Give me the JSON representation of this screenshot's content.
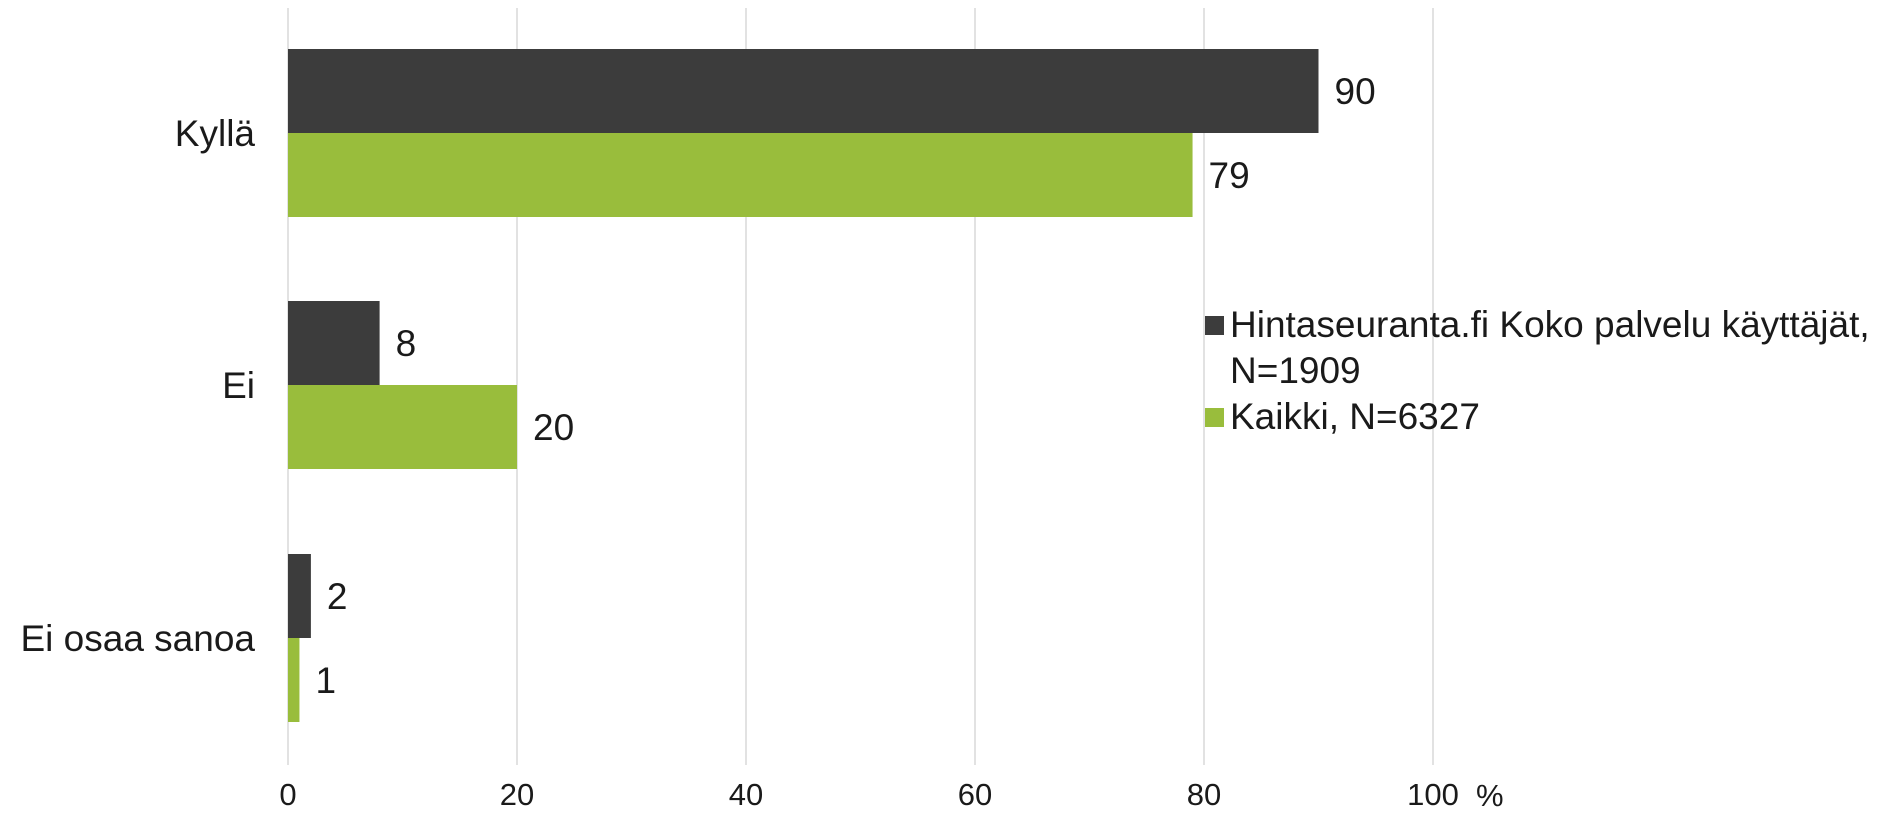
{
  "chart_data": {
    "type": "bar",
    "orientation": "horizontal",
    "categories": [
      "Kyllä",
      "Ei",
      "Ei osaa sanoa"
    ],
    "series": [
      {
        "name": "Hintaseuranta.fi Koko palvelu käyttäjät, N=1909",
        "color": "#3c3c3c",
        "values": [
          90,
          8,
          2
        ]
      },
      {
        "name": "Kaikki, N=6327",
        "color": "#99bd3c",
        "values": [
          79,
          20,
          1
        ]
      }
    ],
    "data_labels": [
      [
        "90",
        "8",
        "2"
      ],
      [
        "79",
        "20",
        "1"
      ]
    ],
    "xlim": [
      0,
      100
    ],
    "xticks": [
      "0",
      "20",
      "40",
      "60",
      "80",
      "100"
    ],
    "unit": "%",
    "grid": true,
    "legend_position": "right"
  }
}
